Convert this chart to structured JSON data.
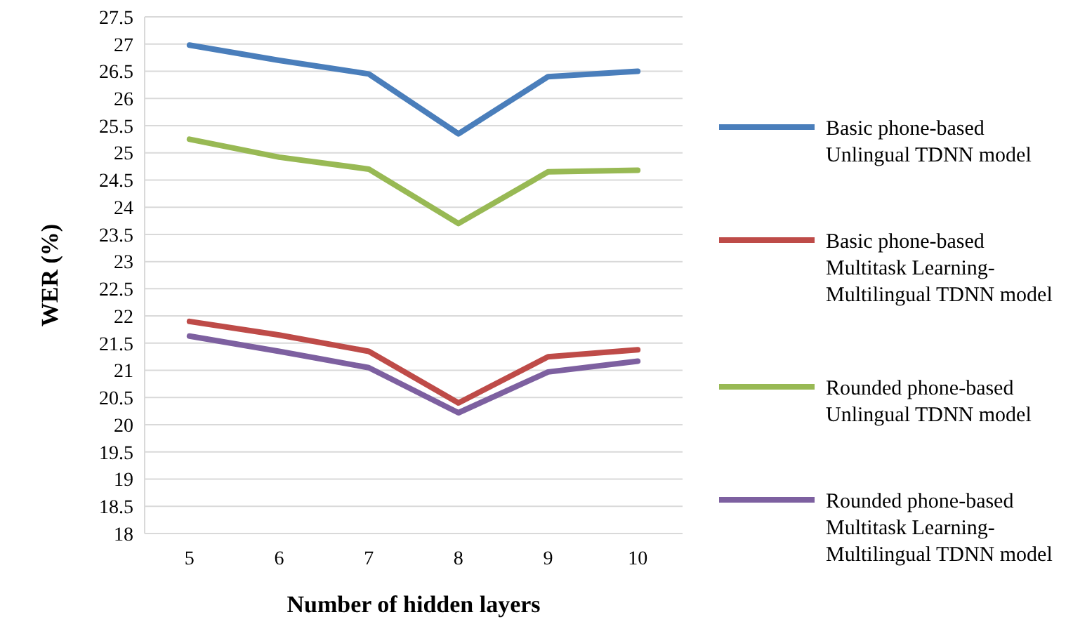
{
  "chart_data": {
    "type": "line",
    "xlabel": "Number of hidden layers",
    "ylabel": "WER (%)",
    "categories": [
      "5",
      "6",
      "7",
      "8",
      "9",
      "10"
    ],
    "ylim": [
      18,
      27.5
    ],
    "yticks": [
      18,
      18.5,
      19,
      19.5,
      20,
      20.5,
      21,
      21.5,
      22,
      22.5,
      23,
      23.5,
      24,
      24.5,
      25,
      25.5,
      26,
      26.5,
      27,
      27.5
    ],
    "grid": "y",
    "legend": "right",
    "marker": "none",
    "line_style": "solid",
    "series": [
      {
        "name": "Basic phone-based Unlingual TDNN model",
        "color": "#4a7ebb",
        "values": [
          26.98,
          26.7,
          26.45,
          25.35,
          26.4,
          26.5
        ]
      },
      {
        "name": "Basic phone-based Multitask Learning-Multilingual TDNN model",
        "color": "#be4b48",
        "values": [
          21.9,
          21.65,
          21.35,
          20.4,
          21.25,
          21.38
        ]
      },
      {
        "name": "Rounded phone-based Unlingual TDNN model",
        "color": "#98b954",
        "values": [
          25.25,
          24.92,
          24.7,
          23.7,
          24.65,
          24.68
        ]
      },
      {
        "name": "Rounded phone-based Multitask Learning-Multilingual TDNN model",
        "color": "#7d60a0",
        "values": [
          21.63,
          21.35,
          21.05,
          20.22,
          20.97,
          21.17
        ]
      }
    ]
  }
}
